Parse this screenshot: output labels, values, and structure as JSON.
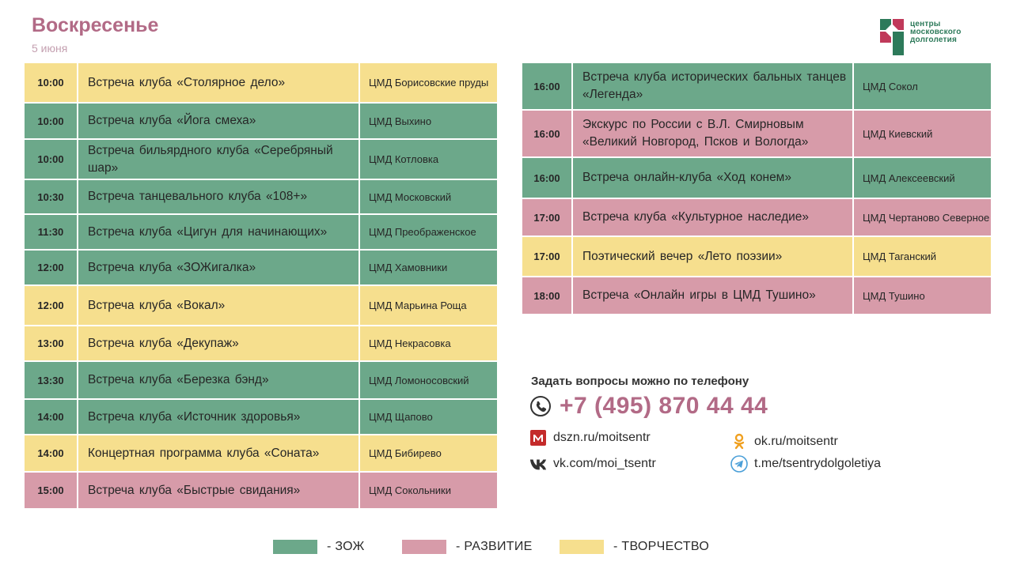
{
  "header": {
    "title": "Воскресенье",
    "date": "5 июня"
  },
  "logo": {
    "line1": "центры",
    "line2": "московского",
    "line3": "долголетия"
  },
  "colors": {
    "zoj": "#6ca88a",
    "razv": "#d79ba9",
    "tvor": "#f6df8e",
    "accent": "#b26a86"
  },
  "left_table": [
    {
      "time": "10:00",
      "event": "Встреча клуба «Столярное  дело»",
      "place": "ЦМД Борисовские пруды",
      "category": "tvor"
    },
    {
      "time": "10:00",
      "event": "Встреча клуба «Йога смеха»",
      "place": "ЦМД Выхино",
      "category": "zoj"
    },
    {
      "time": "10:00",
      "event": "Встреча бильярдного клуба «Серебряный шар»",
      "place": "ЦМД Котловка",
      "category": "zoj"
    },
    {
      "time": "10:30",
      "event": "Встреча танцевального клуба «108+»",
      "place": "ЦМД Московский",
      "category": "zoj"
    },
    {
      "time": "11:30",
      "event": "Встреча клуба «Цигун для начинающих»",
      "place": "ЦМД Преображенское",
      "category": "zoj"
    },
    {
      "time": "12:00",
      "event": "Встреча клуба «ЗОЖигалка»",
      "place": "ЦМД Хамовники",
      "category": "zoj"
    },
    {
      "time": "12:00",
      "event": "Встреча клуба «Вокал»",
      "place": "ЦМД Марьина Роща",
      "category": "tvor"
    },
    {
      "time": "13:00",
      "event": "Встреча клуба «Декупаж»",
      "place": "ЦМД Некрасовка",
      "category": "tvor"
    },
    {
      "time": "13:30",
      "event": "Встреча клуба «Березка бэнд»",
      "place": "ЦМД Ломоносовский",
      "category": "zoj"
    },
    {
      "time": "14:00",
      "event": "Встреча клуба «Источник здоровья»",
      "place": "ЦМД Щапово",
      "category": "zoj"
    },
    {
      "time": "14:00",
      "event": "Концертная программа клуба «Соната»",
      "place": "ЦМД Бибирево",
      "category": "tvor"
    },
    {
      "time": "15:00",
      "event": "Встреча клуба «Быстрые свидания»",
      "place": "ЦМД Сокольники",
      "category": "razv"
    }
  ],
  "right_table": [
    {
      "time": "16:00",
      "event": "Встреча клуба исторических бальных танцев «Легенда»",
      "place": "ЦМД Сокол",
      "category": "zoj"
    },
    {
      "time": "16:00",
      "event": "Экскурс по России с В.Л. Смирновым «Великий Новгород, Псков и Вологда»",
      "place": "ЦМД Киевский",
      "category": "razv"
    },
    {
      "time": "16:00",
      "event": "Встреча онлайн-клуба «Ход конем»",
      "place": "ЦМД Алексеевский",
      "category": "zoj"
    },
    {
      "time": "17:00",
      "event": "Встреча клуба «Культурное наследие»",
      "place": "ЦМД Чертаново Северное",
      "category": "razv"
    },
    {
      "time": "17:00",
      "event": "Поэтический вечер «Лето поэзии»",
      "place": "ЦМД Таганский",
      "category": "tvor"
    },
    {
      "time": "18:00",
      "event": "Встреча «Онлайн игры в ЦМД Тушино»",
      "place": "ЦМД Тушино",
      "category": "razv"
    }
  ],
  "contacts": {
    "heading": "Задать вопросы можно по телефону",
    "phone": "+7 (495) 870 44 44",
    "site": "dszn.ru/moitsentr",
    "vk": "vk.com/moi_tsentr",
    "ok": "ok.ru/moitsentr",
    "telegram": "t.me/tsentrydolgoletiya"
  },
  "legend": [
    {
      "category": "zoj",
      "label": "- ЗОЖ"
    },
    {
      "category": "razv",
      "label": "- РАЗВИТИЕ"
    },
    {
      "category": "tvor",
      "label": "- ТВОРЧЕСТВО"
    }
  ]
}
